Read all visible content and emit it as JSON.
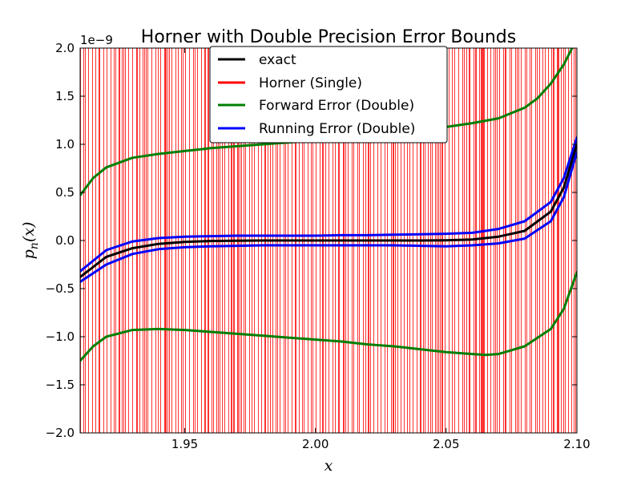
{
  "chart_data": {
    "type": "line",
    "title": "Horner with Double Precision Error Bounds",
    "xlabel": "x",
    "ylabel": "p_n(x)",
    "ylabel_parts": {
      "base": "p",
      "subscript": "n",
      "arg": "(x)"
    },
    "y_offset_label": "1e−9",
    "xlim": [
      1.91,
      2.1
    ],
    "ylim": [
      -2.0,
      2.0
    ],
    "x_ticks": [
      1.95,
      2.0,
      2.05,
      2.1
    ],
    "x_tick_labels": [
      "1.95",
      "2.00",
      "2.05",
      "2.10"
    ],
    "y_ticks": [
      -2.0,
      -1.5,
      -1.0,
      -0.5,
      0.0,
      0.5,
      1.0,
      1.5,
      2.0
    ],
    "y_tick_labels": [
      "−2.0",
      "−1.5",
      "−1.0",
      "−0.5",
      "0.0",
      "0.5",
      "1.0",
      "1.5",
      "2.0"
    ],
    "grid": false,
    "legend_position": "top-center",
    "series": [
      {
        "name": "exact",
        "color": "#000000",
        "style": "line",
        "x": [
          1.91,
          1.92,
          1.93,
          1.94,
          1.95,
          1.96,
          1.97,
          1.98,
          1.99,
          2.0,
          2.01,
          2.02,
          2.03,
          2.04,
          2.05,
          2.06,
          2.07,
          2.08,
          2.09,
          2.095,
          2.1
        ],
        "y": [
          -0.38,
          -0.17,
          -0.08,
          -0.035,
          -0.015,
          -0.005,
          -0.002,
          0.0,
          0.0,
          0.0,
          0.0,
          0.0,
          0.0,
          0.0,
          0.002,
          0.01,
          0.04,
          0.1,
          0.3,
          0.55,
          1.0
        ]
      },
      {
        "name": "Horner (Single)",
        "color": "#ff0000",
        "style": "oscillating-vertical-lines",
        "amplitude": 2.0
      },
      {
        "name": "Forward Error (Double)",
        "color": "#007f00",
        "style": "line",
        "upper": {
          "x": [
            1.91,
            1.915,
            1.92,
            1.93,
            1.94,
            1.95,
            1.96,
            1.97,
            1.98,
            1.99,
            2.0,
            2.01,
            2.02,
            2.03,
            2.04,
            2.05,
            2.06,
            2.07,
            2.08,
            2.085,
            2.09,
            2.095,
            2.1
          ],
          "y": [
            0.47,
            0.65,
            0.76,
            0.86,
            0.9,
            0.93,
            0.96,
            0.98,
            1.0,
            1.02,
            1.04,
            1.07,
            1.09,
            1.12,
            1.15,
            1.18,
            1.22,
            1.27,
            1.38,
            1.48,
            1.63,
            1.83,
            2.1
          ]
        },
        "lower": {
          "x": [
            1.91,
            1.915,
            1.92,
            1.93,
            1.94,
            1.95,
            1.96,
            1.97,
            1.98,
            1.99,
            2.0,
            2.01,
            2.02,
            2.03,
            2.04,
            2.05,
            2.06,
            2.065,
            2.07,
            2.08,
            2.09,
            2.095,
            2.1
          ],
          "y": [
            -1.25,
            -1.1,
            -1.0,
            -0.93,
            -0.92,
            -0.93,
            -0.95,
            -0.97,
            -0.99,
            -1.01,
            -1.03,
            -1.05,
            -1.08,
            -1.1,
            -1.13,
            -1.16,
            -1.18,
            -1.19,
            -1.18,
            -1.1,
            -0.92,
            -0.71,
            -0.33
          ]
        }
      },
      {
        "name": "Running Error (Double)",
        "color": "#0000ff",
        "style": "line",
        "upper": {
          "x": [
            1.91,
            1.92,
            1.93,
            1.94,
            1.95,
            1.96,
            1.97,
            1.98,
            1.99,
            2.0,
            2.01,
            2.02,
            2.03,
            2.04,
            2.05,
            2.06,
            2.07,
            2.08,
            2.09,
            2.095,
            2.1
          ],
          "y": [
            -0.32,
            -0.1,
            -0.01,
            0.025,
            0.04,
            0.045,
            0.05,
            0.05,
            0.05,
            0.05,
            0.055,
            0.055,
            0.06,
            0.065,
            0.07,
            0.08,
            0.12,
            0.2,
            0.4,
            0.65,
            1.07
          ]
        },
        "lower": {
          "x": [
            1.91,
            1.92,
            1.93,
            1.94,
            1.95,
            1.96,
            1.97,
            1.98,
            1.99,
            2.0,
            2.01,
            2.02,
            2.03,
            2.04,
            2.05,
            2.06,
            2.07,
            2.08,
            2.09,
            2.095,
            2.1
          ],
          "y": [
            -0.43,
            -0.25,
            -0.14,
            -0.09,
            -0.07,
            -0.06,
            -0.055,
            -0.05,
            -0.05,
            -0.05,
            -0.05,
            -0.05,
            -0.05,
            -0.055,
            -0.06,
            -0.05,
            -0.03,
            0.02,
            0.2,
            0.45,
            0.92
          ]
        }
      }
    ]
  }
}
